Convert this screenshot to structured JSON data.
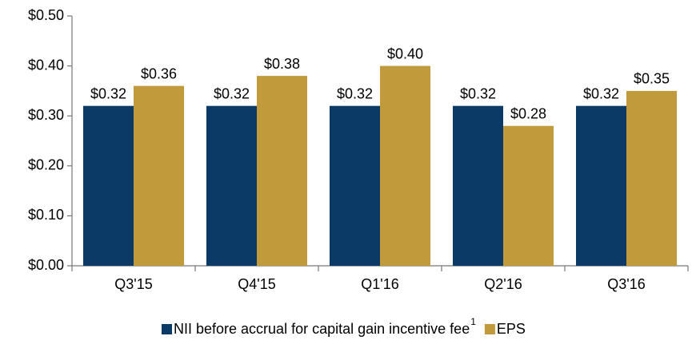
{
  "chart_data": {
    "type": "bar",
    "categories": [
      "Q3'15",
      "Q4'15",
      "Q1'16",
      "Q2'16",
      "Q3'16"
    ],
    "series": [
      {
        "name": "NII before accrual for capital gain incentive fee",
        "footnote": "1",
        "color": "#0b3a66",
        "values": [
          0.32,
          0.32,
          0.32,
          0.32,
          0.32
        ],
        "value_labels": [
          "$0.32",
          "$0.32",
          "$0.32",
          "$0.32",
          "$0.32"
        ]
      },
      {
        "name": "EPS",
        "color": "#c19a3c",
        "values": [
          0.36,
          0.38,
          0.4,
          0.28,
          0.35
        ],
        "value_labels": [
          "$0.36",
          "$0.38",
          "$0.40",
          "$0.28",
          "$0.35"
        ]
      }
    ],
    "ylim": [
      0,
      0.5
    ],
    "yticks": [
      {
        "value": 0,
        "label": "$0.00"
      },
      {
        "value": 0.1,
        "label": "$0.10"
      },
      {
        "value": 0.2,
        "label": "$0.20"
      },
      {
        "value": 0.3,
        "label": "$0.30"
      },
      {
        "value": 0.4,
        "label": "$0.40"
      },
      {
        "value": 0.5,
        "label": "$0.50"
      }
    ],
    "grid": false,
    "legend": "bottom"
  }
}
